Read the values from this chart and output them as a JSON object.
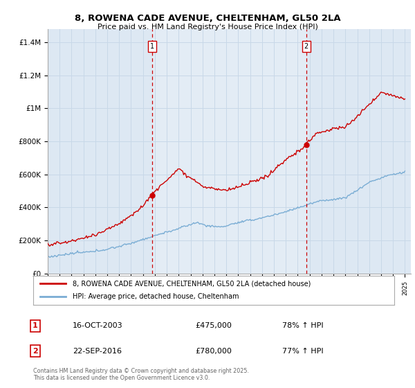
{
  "title_line1": "8, ROWENA CADE AVENUE, CHELTENHAM, GL50 2LA",
  "title_line2": "Price paid vs. HM Land Registry's House Price Index (HPI)",
  "ylabel_ticks": [
    "£0",
    "£200K",
    "£400K",
    "£600K",
    "£800K",
    "£1M",
    "£1.2M",
    "£1.4M"
  ],
  "ytick_values": [
    0,
    200000,
    400000,
    600000,
    800000,
    1000000,
    1200000,
    1400000
  ],
  "ylim": [
    0,
    1480000
  ],
  "xlim_left": 1995,
  "xlim_right": 2025.5,
  "red_color": "#cc0000",
  "blue_color": "#7aadd4",
  "vline_color": "#cc0000",
  "grid_color": "#c8d8e8",
  "bg_color": "#dde8f3",
  "bg_color2": "#e8f0f8",
  "legend_label_red": "8, ROWENA CADE AVENUE, CHELTENHAM, GL50 2LA (detached house)",
  "legend_label_blue": "HPI: Average price, detached house, Cheltenham",
  "annotation1_date": "16-OCT-2003",
  "annotation1_price": "£475,000",
  "annotation1_hpi": "78% ↑ HPI",
  "annotation1_year": 2003.79,
  "annotation2_date": "22-SEP-2016",
  "annotation2_price": "£780,000",
  "annotation2_hpi": "77% ↑ HPI",
  "annotation2_year": 2016.72,
  "footer": "Contains HM Land Registry data © Crown copyright and database right 2025.\nThis data is licensed under the Open Government Licence v3.0."
}
